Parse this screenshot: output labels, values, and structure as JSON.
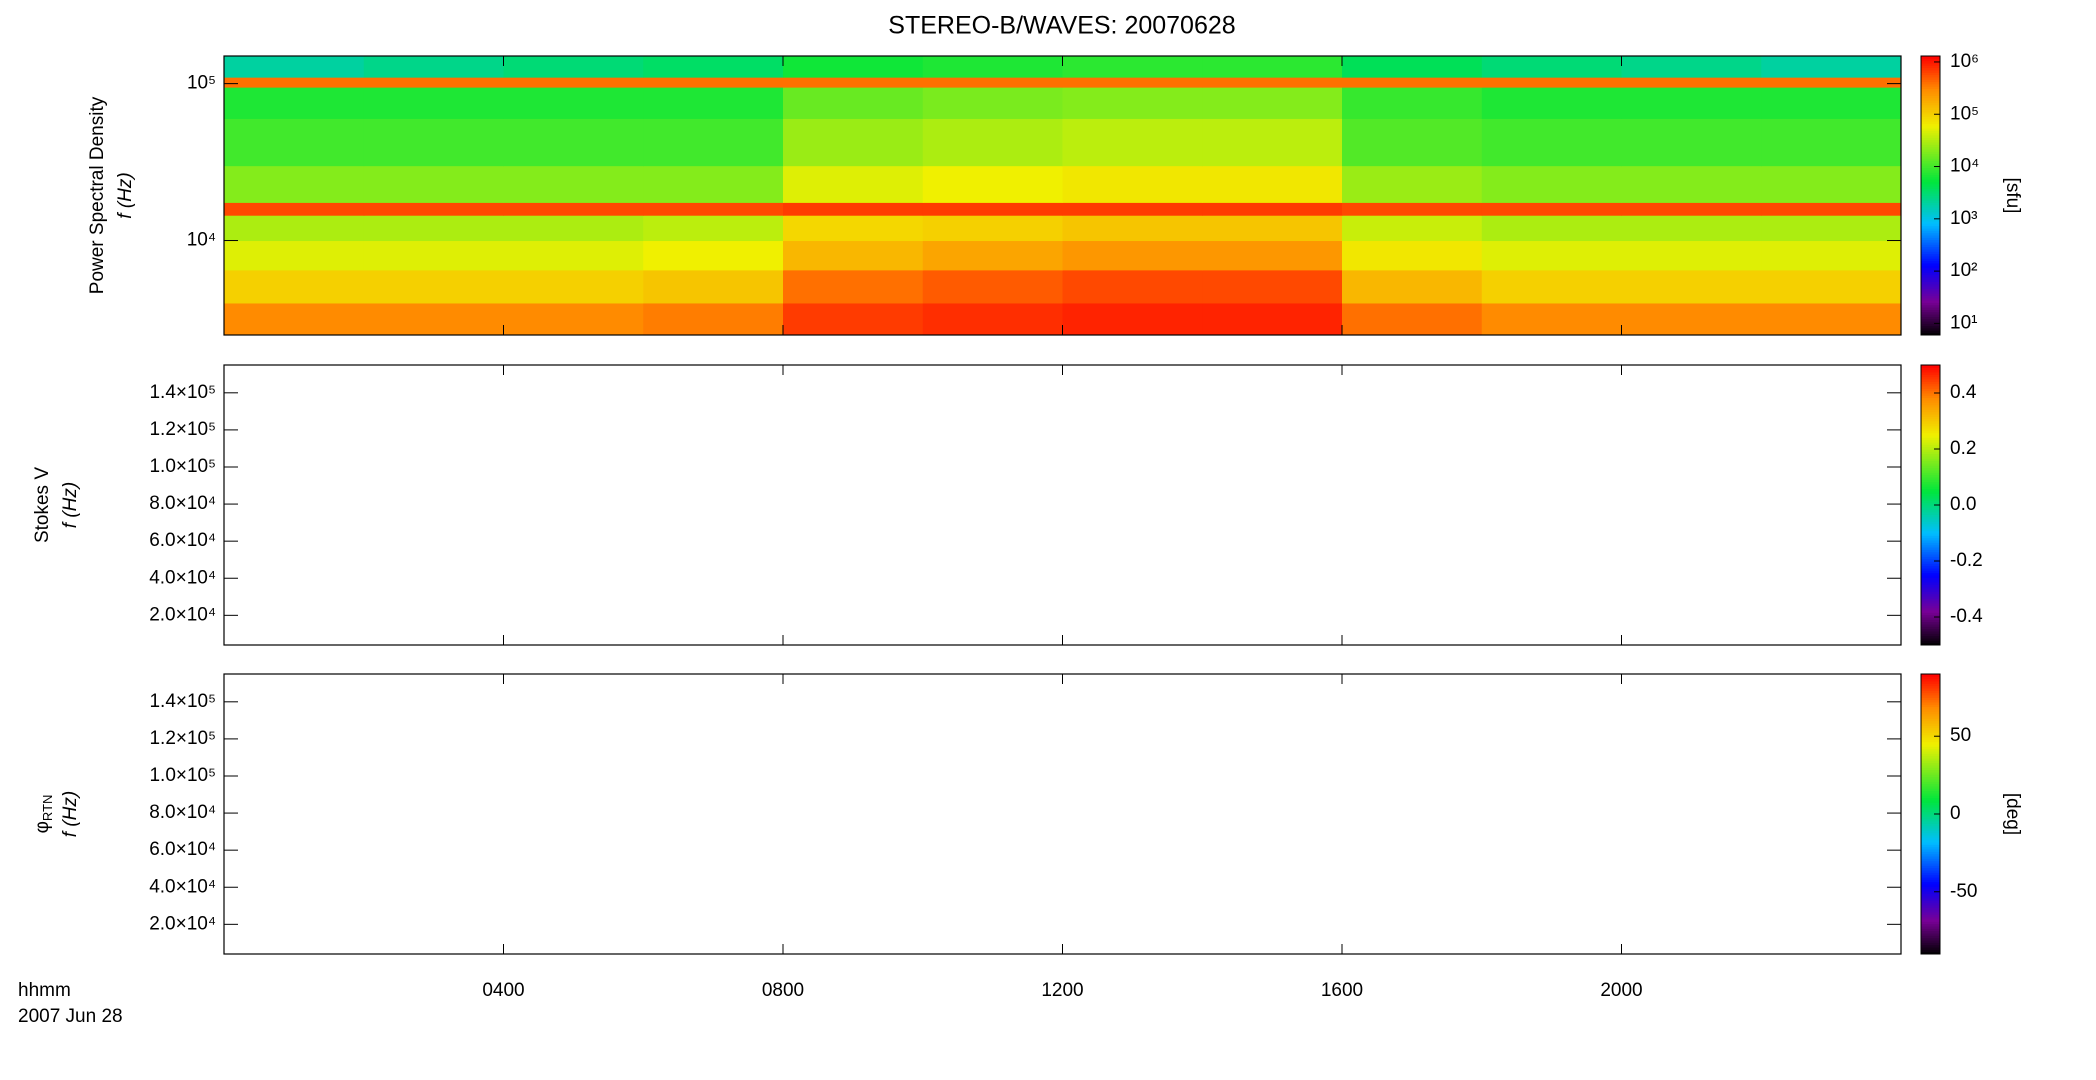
{
  "chart_data": [
    {
      "type": "heatmap",
      "title": "STEREO-B/WAVES: 20070628",
      "ylabel": "Power Spectral Density",
      "ylabel2": "f (Hz)",
      "ylog": true,
      "ylim": [
        2500,
        150000
      ],
      "yticks": [
        {
          "value": 10000,
          "label": "10⁴"
        },
        {
          "value": 100000,
          "label": "10⁵"
        }
      ],
      "xbins": [
        0,
        2,
        4,
        6,
        8,
        10,
        12,
        14,
        16,
        18,
        20,
        22,
        24
      ],
      "ybins": [
        2500,
        4000,
        6500,
        10000,
        14500,
        17500,
        30000,
        60000,
        95000,
        110000,
        150000
      ],
      "values": [
        [
          300000,
          300000,
          300000,
          350000,
          700000,
          800000,
          900000,
          900000,
          400000,
          300000,
          300000,
          300000
        ],
        [
          100000,
          100000,
          100000,
          120000,
          400000,
          500000,
          600000,
          600000,
          150000,
          100000,
          100000,
          100000
        ],
        [
          50000,
          50000,
          50000,
          60000,
          150000,
          200000,
          250000,
          250000,
          70000,
          50000,
          50000,
          50000
        ],
        [
          30000,
          30000,
          30000,
          35000,
          90000,
          100000,
          120000,
          120000,
          40000,
          30000,
          30000,
          30000
        ],
        [
          600000,
          600000,
          600000,
          600000,
          700000,
          700000,
          700000,
          700000,
          600000,
          600000,
          600000,
          600000
        ],
        [
          20000,
          20000,
          20000,
          20000,
          50000,
          60000,
          70000,
          70000,
          25000,
          20000,
          20000,
          20000
        ],
        [
          10000,
          10000,
          10000,
          10000,
          25000,
          30000,
          35000,
          35000,
          12000,
          10000,
          10000,
          10000
        ],
        [
          7000,
          7000,
          7000,
          7000,
          15000,
          18000,
          20000,
          20000,
          9000,
          7000,
          7000,
          7000
        ],
        [
          400000,
          400000,
          400000,
          400000,
          400000,
          400000,
          400000,
          400000,
          400000,
          400000,
          400000,
          400000
        ],
        [
          2000,
          2500,
          3000,
          3500,
          6000,
          7000,
          8000,
          8000,
          4000,
          3000,
          2500,
          2000
        ]
      ],
      "zlog": true,
      "zlim": [
        6,
        1300000
      ],
      "zticks": [
        {
          "value": 10,
          "label": "10¹"
        },
        {
          "value": 100,
          "label": "10²"
        },
        {
          "value": 1000,
          "label": "10³"
        },
        {
          "value": 10000,
          "label": "10⁴"
        },
        {
          "value": 100000,
          "label": "10⁵"
        },
        {
          "value": 1000000,
          "label": "10⁶"
        }
      ],
      "zlabel": "[sfu]"
    },
    {
      "type": "heatmap",
      "ylabel": "Stokes V",
      "ylabel2": "f (Hz)",
      "ylog": false,
      "ylim": [
        4000,
        155000
      ],
      "yticks": [
        {
          "value": 20000,
          "label": "2.0×10⁴"
        },
        {
          "value": 40000,
          "label": "4.0×10⁴"
        },
        {
          "value": 60000,
          "label": "6.0×10⁴"
        },
        {
          "value": 80000,
          "label": "8.0×10⁴"
        },
        {
          "value": 100000,
          "label": "1.0×10⁵"
        },
        {
          "value": 120000,
          "label": "1.2×10⁵"
        },
        {
          "value": 140000,
          "label": "1.4×10⁵"
        }
      ],
      "zlog": false,
      "zlim": [
        -0.5,
        0.5
      ],
      "zticks": [
        -0.4,
        -0.2,
        {
          "value": 0,
          "label": "0.0"
        },
        0.2,
        0.4
      ]
    },
    {
      "type": "heatmap",
      "ylabel": "φ",
      "ylabel_sub": "RTN",
      "ylabel2": "f (Hz)",
      "ylog": false,
      "ylim": [
        4000,
        155000
      ],
      "yticks": [
        {
          "value": 20000,
          "label": "2.0×10⁴"
        },
        {
          "value": 40000,
          "label": "4.0×10⁴"
        },
        {
          "value": 60000,
          "label": "6.0×10⁴"
        },
        {
          "value": 80000,
          "label": "8.0×10⁴"
        },
        {
          "value": 100000,
          "label": "1.0×10⁵"
        },
        {
          "value": 120000,
          "label": "1.2×10⁵"
        },
        {
          "value": 140000,
          "label": "1.4×10⁵"
        }
      ],
      "zlog": false,
      "zlim": [
        -90,
        90
      ],
      "zticks": [
        -50,
        0,
        50
      ],
      "zlabel": "[deg]",
      "xlim": [
        0,
        24
      ],
      "xticks": [
        {
          "value": 4,
          "label": "0400"
        },
        {
          "value": 8,
          "label": "0800"
        },
        {
          "value": 12,
          "label": "1200"
        },
        {
          "value": 16,
          "label": "1600"
        },
        {
          "value": 20,
          "label": "2000"
        }
      ],
      "xlabel": "hhmm",
      "xlabel2": "2007 Jun 28"
    }
  ]
}
